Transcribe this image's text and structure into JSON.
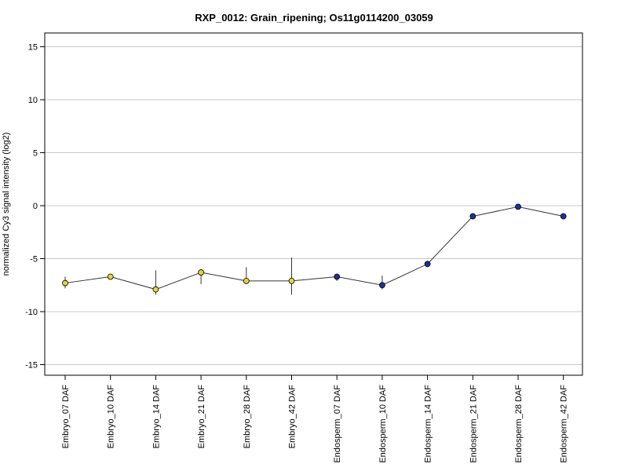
{
  "chart_data": {
    "type": "line",
    "title": "RXP_0012: Grain_ripening; Os11g0114200_03059",
    "xlabel": "",
    "ylabel": "normalized Cy3 signal intensity (log2)",
    "ylim": [
      -16,
      16.3
    ],
    "yticks": [
      -15,
      -10,
      -5,
      0,
      5,
      10,
      15
    ],
    "grid": true,
    "categories": [
      "Embryo_07 DAF",
      "Embryo_10 DAF",
      "Embryo_14 DAF",
      "Embryo_21 DAF",
      "Embryo_28 DAF",
      "Embryo_42 DAF",
      "Endosperm_07 DAF",
      "Endosperm_10 DAF",
      "Endosperm_14 DAF",
      "Endosperm_21 DAF",
      "Endosperm_28 DAF",
      "Endosperm_42 DAF"
    ],
    "values": [
      -7.3,
      -6.7,
      -7.9,
      -6.3,
      -7.1,
      -7.1,
      -6.7,
      -7.5,
      -5.5,
      -1.0,
      -0.1,
      -1.0
    ],
    "error_low": [
      -7.8,
      -6.9,
      -8.4,
      -7.4,
      -7.4,
      -8.4,
      -7.1,
      -7.9,
      -5.8,
      -1.3,
      -0.3,
      -1.2
    ],
    "error_high": [
      -6.7,
      -6.5,
      -6.1,
      -6.0,
      -5.8,
      -4.9,
      -6.5,
      -6.6,
      -5.2,
      -0.7,
      0.1,
      -0.8
    ],
    "point_colors": [
      "#e8d23a",
      "#e8d23a",
      "#e8d23a",
      "#e8d23a",
      "#e8d23a",
      "#e8d23a",
      "#1a3399",
      "#1a3399",
      "#1a3399",
      "#1a3399",
      "#1a3399",
      "#1a3399"
    ],
    "line_color": "#333333",
    "grid_color": "#c8c8c8"
  }
}
